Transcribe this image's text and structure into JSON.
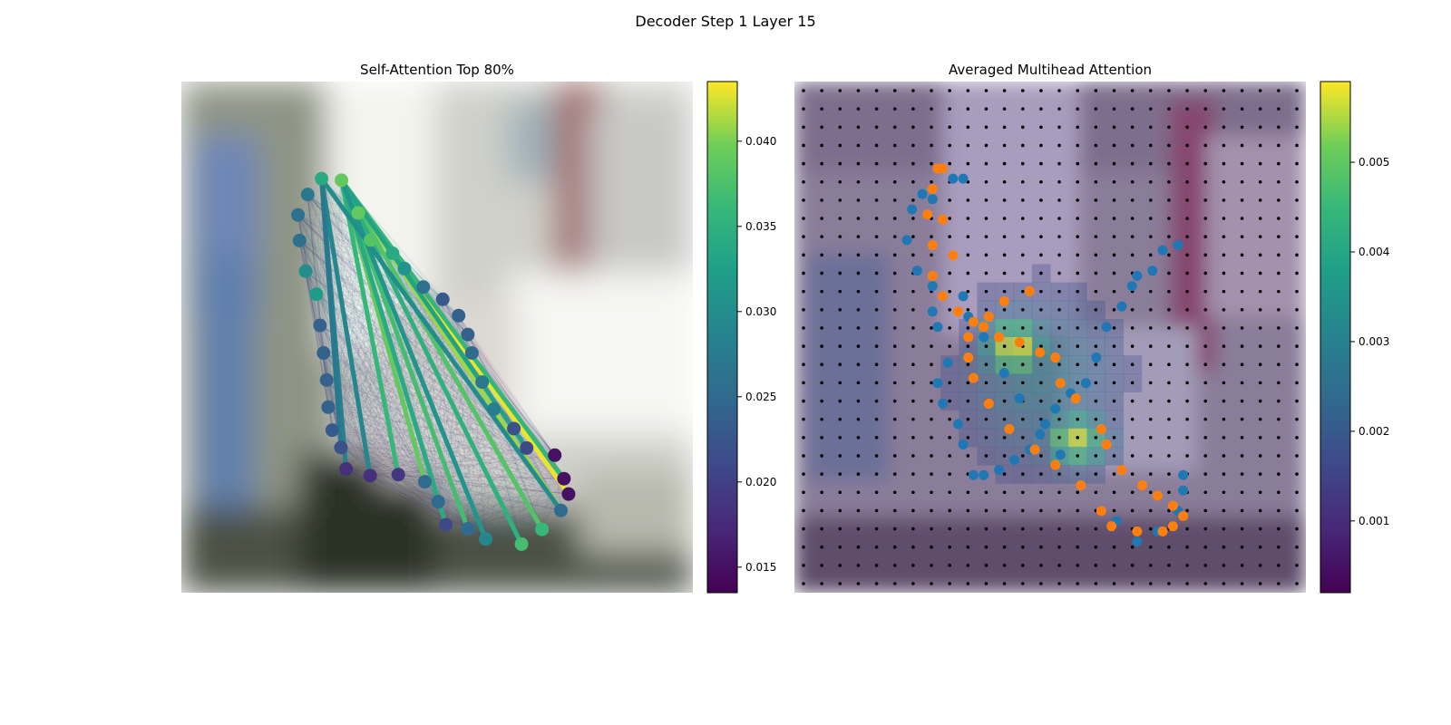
{
  "figure": {
    "title": "Decoder Step 1 Layer 15"
  },
  "chart_data": [
    {
      "type": "scatter",
      "title": "Self-Attention Top 80%",
      "description_of_values": "contour points (pixel-grid coords on a 0-1 normalized image) with attention-weighted edges",
      "points": [
        {
          "x": 0.274,
          "y": 0.19,
          "v": 0.034
        },
        {
          "x": 0.313,
          "y": 0.193,
          "v": 0.039
        },
        {
          "x": 0.247,
          "y": 0.221,
          "v": 0.027
        },
        {
          "x": 0.228,
          "y": 0.261,
          "v": 0.026
        },
        {
          "x": 0.231,
          "y": 0.311,
          "v": 0.026
        },
        {
          "x": 0.243,
          "y": 0.371,
          "v": 0.03
        },
        {
          "x": 0.264,
          "y": 0.416,
          "v": 0.032
        },
        {
          "x": 0.271,
          "y": 0.477,
          "v": 0.024
        },
        {
          "x": 0.278,
          "y": 0.531,
          "v": 0.024
        },
        {
          "x": 0.284,
          "y": 0.584,
          "v": 0.024
        },
        {
          "x": 0.287,
          "y": 0.637,
          "v": 0.024
        },
        {
          "x": 0.295,
          "y": 0.682,
          "v": 0.023
        },
        {
          "x": 0.312,
          "y": 0.716,
          "v": 0.022
        },
        {
          "x": 0.322,
          "y": 0.758,
          "v": 0.018
        },
        {
          "x": 0.369,
          "y": 0.771,
          "v": 0.018
        },
        {
          "x": 0.424,
          "y": 0.769,
          "v": 0.019
        },
        {
          "x": 0.476,
          "y": 0.783,
          "v": 0.025
        },
        {
          "x": 0.502,
          "y": 0.822,
          "v": 0.025
        },
        {
          "x": 0.517,
          "y": 0.867,
          "v": 0.021
        },
        {
          "x": 0.56,
          "y": 0.875,
          "v": 0.025
        },
        {
          "x": 0.595,
          "y": 0.895,
          "v": 0.029
        },
        {
          "x": 0.665,
          "y": 0.905,
          "v": 0.037
        },
        {
          "x": 0.705,
          "y": 0.876,
          "v": 0.036
        },
        {
          "x": 0.742,
          "y": 0.839,
          "v": 0.025
        },
        {
          "x": 0.757,
          "y": 0.807,
          "v": 0.015
        },
        {
          "x": 0.748,
          "y": 0.777,
          "v": 0.015
        },
        {
          "x": 0.73,
          "y": 0.731,
          "v": 0.015
        },
        {
          "x": 0.675,
          "y": 0.717,
          "v": 0.021
        },
        {
          "x": 0.65,
          "y": 0.679,
          "v": 0.022
        },
        {
          "x": 0.611,
          "y": 0.641,
          "v": 0.028
        },
        {
          "x": 0.588,
          "y": 0.588,
          "v": 0.027
        },
        {
          "x": 0.568,
          "y": 0.531,
          "v": 0.025
        },
        {
          "x": 0.56,
          "y": 0.495,
          "v": 0.024
        },
        {
          "x": 0.542,
          "y": 0.458,
          "v": 0.024
        },
        {
          "x": 0.511,
          "y": 0.426,
          "v": 0.023
        },
        {
          "x": 0.473,
          "y": 0.402,
          "v": 0.026
        },
        {
          "x": 0.436,
          "y": 0.366,
          "v": 0.031
        },
        {
          "x": 0.413,
          "y": 0.336,
          "v": 0.034
        },
        {
          "x": 0.37,
          "y": 0.31,
          "v": 0.038
        },
        {
          "x": 0.346,
          "y": 0.257,
          "v": 0.039
        }
      ],
      "edges": [
        {
          "a": 1,
          "b": 24,
          "w": 0.043
        },
        {
          "a": 1,
          "b": 23,
          "w": 0.041
        },
        {
          "a": 1,
          "b": 22,
          "w": 0.038
        },
        {
          "a": 1,
          "b": 25,
          "w": 0.036
        },
        {
          "a": 1,
          "b": 16,
          "w": 0.039
        },
        {
          "a": 1,
          "b": 19,
          "w": 0.037
        },
        {
          "a": 1,
          "b": 15,
          "w": 0.036
        },
        {
          "a": 1,
          "b": 21,
          "w": 0.035
        },
        {
          "a": 1,
          "b": 18,
          "w": 0.034
        },
        {
          "a": 1,
          "b": 27,
          "w": 0.033
        },
        {
          "a": 1,
          "b": 20,
          "w": 0.031
        },
        {
          "a": 0,
          "b": 23,
          "w": 0.03
        },
        {
          "a": 0,
          "b": 13,
          "w": 0.028
        },
        {
          "a": 0,
          "b": 14,
          "w": 0.029
        },
        {
          "a": 0,
          "b": 12,
          "w": 0.027
        }
      ],
      "colorbar": {
        "colormap": "viridis",
        "vmin": 0.0135,
        "vmax": 0.0435,
        "ticks": [
          "0.015",
          "0.020",
          "0.025",
          "0.030",
          "0.035",
          "0.040"
        ],
        "tick_values": [
          0.015,
          0.02,
          0.025,
          0.03,
          0.035,
          0.04
        ]
      }
    },
    {
      "type": "heatmap",
      "title": "Averaged Multihead Attention",
      "grid": 28,
      "series": [
        {
          "color": "#1f77b4",
          "x": [
            0.33,
            0.31,
            0.25,
            0.27,
            0.23,
            0.22,
            0.24,
            0.27,
            0.27,
            0.28,
            0.3,
            0.28,
            0.29,
            0.32,
            0.33,
            0.35,
            0.37,
            0.4,
            0.43,
            0.46,
            0.49,
            0.51,
            0.54,
            0.57,
            0.59,
            0.61,
            0.64,
            0.66,
            0.67,
            0.7,
            0.72,
            0.75,
            0.76,
            0.76,
            0.75,
            0.74,
            0.71,
            0.67,
            0.63,
            0.56,
            0.52,
            0.48,
            0.44,
            0.41,
            0.37,
            0.34,
            0.33
          ],
          "y": [
            0.19,
            0.19,
            0.22,
            0.23,
            0.25,
            0.31,
            0.37,
            0.4,
            0.45,
            0.48,
            0.55,
            0.59,
            0.63,
            0.67,
            0.71,
            0.77,
            0.77,
            0.76,
            0.74,
            0.72,
            0.67,
            0.64,
            0.61,
            0.59,
            0.54,
            0.48,
            0.44,
            0.4,
            0.38,
            0.37,
            0.33,
            0.32,
            0.77,
            0.8,
            0.84,
            0.87,
            0.88,
            0.9,
            0.86,
            0.79,
            0.73,
            0.69,
            0.62,
            0.57,
            0.5,
            0.46,
            0.42
          ]
        },
        {
          "color": "#ff7f0e",
          "x": [
            0.28,
            0.29,
            0.27,
            0.26,
            0.29,
            0.27,
            0.31,
            0.27,
            0.29,
            0.32,
            0.35,
            0.37,
            0.4,
            0.44,
            0.48,
            0.51,
            0.52,
            0.55,
            0.6,
            0.61,
            0.64,
            0.68,
            0.71,
            0.74,
            0.76,
            0.74,
            0.72,
            0.67,
            0.62,
            0.6,
            0.56,
            0.51,
            0.47,
            0.42,
            0.38,
            0.35,
            0.34,
            0.34,
            0.38,
            0.41,
            0.46
          ],
          "y": [
            0.17,
            0.17,
            0.21,
            0.26,
            0.27,
            0.32,
            0.34,
            0.38,
            0.42,
            0.45,
            0.47,
            0.48,
            0.5,
            0.51,
            0.53,
            0.54,
            0.59,
            0.62,
            0.68,
            0.71,
            0.76,
            0.79,
            0.81,
            0.83,
            0.85,
            0.87,
            0.88,
            0.88,
            0.87,
            0.84,
            0.79,
            0.75,
            0.72,
            0.68,
            0.63,
            0.58,
            0.54,
            0.5,
            0.46,
            0.43,
            0.41
          ]
        }
      ],
      "colorbar": {
        "colormap": "viridis",
        "vmin": 0.0002,
        "vmax": 0.0059,
        "ticks": [
          "0.001",
          "0.002",
          "0.003",
          "0.004",
          "0.005"
        ],
        "tick_values": [
          0.001,
          0.002,
          0.003,
          0.004,
          0.005
        ]
      }
    }
  ]
}
